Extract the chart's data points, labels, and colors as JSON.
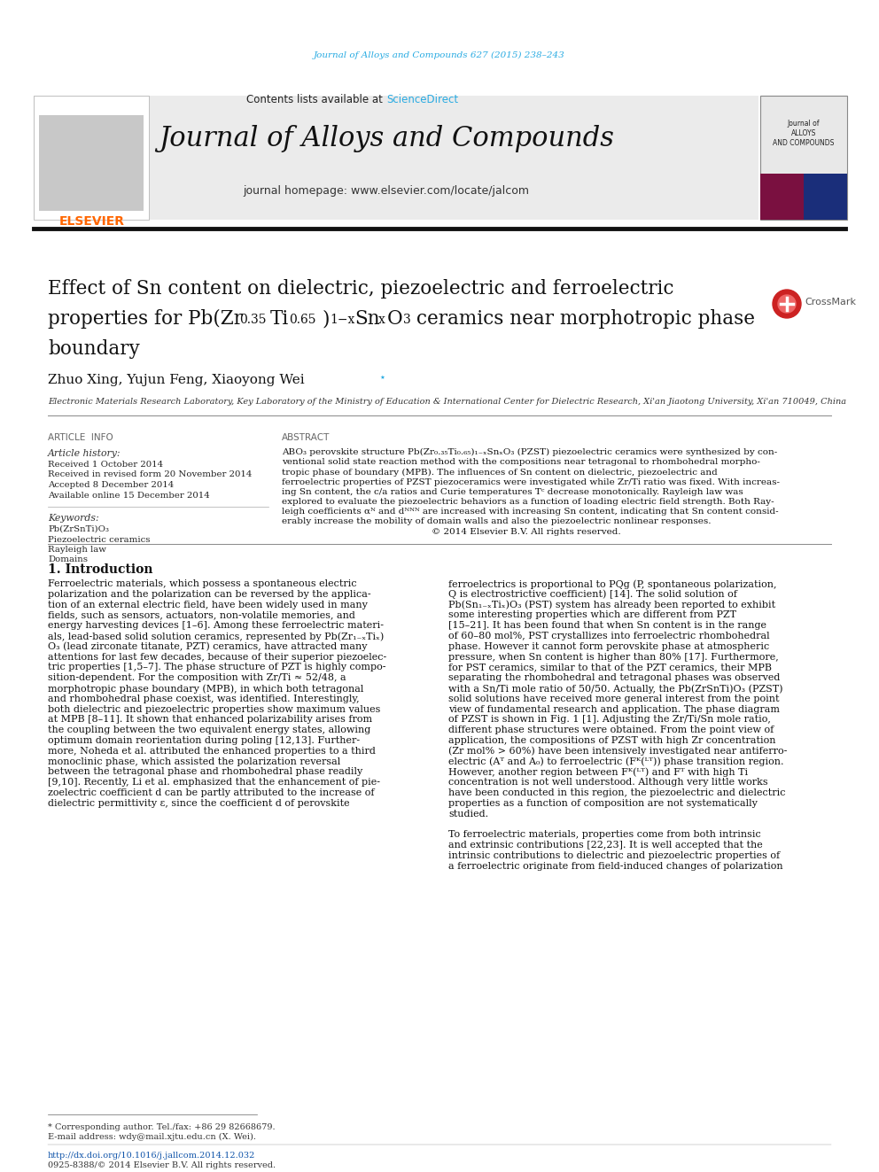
{
  "page_color": "#ffffff",
  "top_link_color": "#29ABE2",
  "top_link_text": "Journal of Alloys and Compounds 627 (2015) 238–243",
  "header_bg": "#e8e8e8",
  "header_sciencedirect_color": "#29ABE2",
  "journal_title": "Journal of Alloys and Compounds",
  "journal_homepage": "journal homepage: www.elsevier.com/locate/jalcom",
  "elsevier_color": "#FF6600",
  "affiliation": "Electronic Materials Research Laboratory, Key Laboratory of the Ministry of Education & International Center for Dielectric Research, Xi'an Jiaotong University, Xi'an 710049, China",
  "received_text": "Received 1 October 2014",
  "revised_text": "Received in revised form 20 November 2014",
  "accepted_text": "Accepted 8 December 2014",
  "online_text": "Available online 15 December 2014",
  "kw1": "Pb(ZrSnTi)O₃",
  "kw2": "Piezoelectric ceramics",
  "kw3": "Rayleigh law",
  "kw4": "Domains",
  "footnote_doi": "http://dx.doi.org/10.1016/j.jallcom.2014.12.032",
  "footnote_issn": "0925-8388/© 2014 Elsevier B.V. All rights reserved."
}
